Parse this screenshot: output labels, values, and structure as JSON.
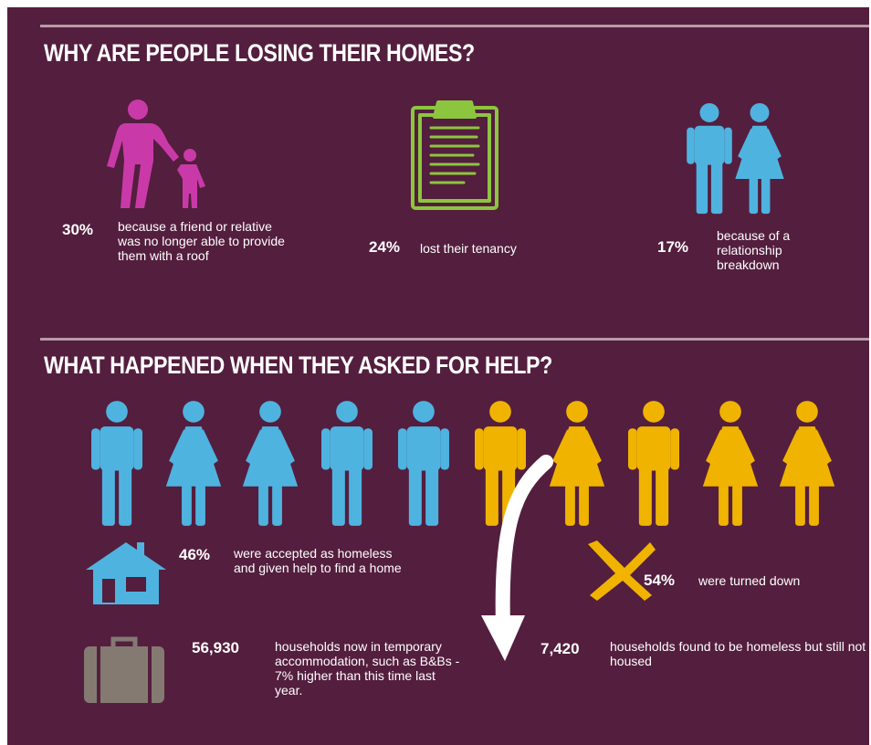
{
  "section1": {
    "title": "WHY ARE PEOPLE LOSING THEIR HOMES?",
    "stats": [
      {
        "percent": "30%",
        "text": "because a friend or relative was no longer able to provide them with a roof",
        "icon": "parent-child-icon",
        "color": "#c93aa8"
      },
      {
        "percent": "24%",
        "text": "lost their tenancy",
        "icon": "clipboard-icon",
        "color": "#8cc63f"
      },
      {
        "percent": "17%",
        "text": "because of a relationship breakdown",
        "icon": "couple-icon",
        "color": "#4fb3e0"
      }
    ]
  },
  "section2": {
    "title": "WHAT HAPPENED WHEN THEY ASKED FOR HELP?",
    "people": [
      {
        "gender": "male",
        "status": "accepted"
      },
      {
        "gender": "female",
        "status": "accepted"
      },
      {
        "gender": "female",
        "status": "accepted"
      },
      {
        "gender": "male",
        "status": "accepted"
      },
      {
        "gender": "male",
        "status": "accepted"
      },
      {
        "gender": "male",
        "status": "turned-down"
      },
      {
        "gender": "female",
        "status": "turned-down"
      },
      {
        "gender": "male",
        "status": "turned-down"
      },
      {
        "gender": "female",
        "status": "turned-down"
      },
      {
        "gender": "female",
        "status": "turned-down"
      }
    ],
    "accepted": {
      "percent": "46%",
      "text": "were accepted as homeless and given help to find a home",
      "icon": "house-icon"
    },
    "turned_down": {
      "percent": "54%",
      "text": "were turned down",
      "icon": "cross-icon"
    },
    "temporary": {
      "count": "56,930",
      "text": "households now in temporary accommodation, such as B&Bs - 7% higher than this time last year.",
      "icon": "suitcase-icon"
    },
    "not_housed": {
      "count": "7,420",
      "text": "households found to be homeless but still not housed",
      "icon": "curved-arrow-icon"
    }
  },
  "colors": {
    "background": "#541e3e",
    "accepted": "#4fb3e0",
    "turned_down": "#f0b400",
    "magenta": "#c93aa8",
    "green": "#8cc63f",
    "suitcase": "#847a72"
  }
}
